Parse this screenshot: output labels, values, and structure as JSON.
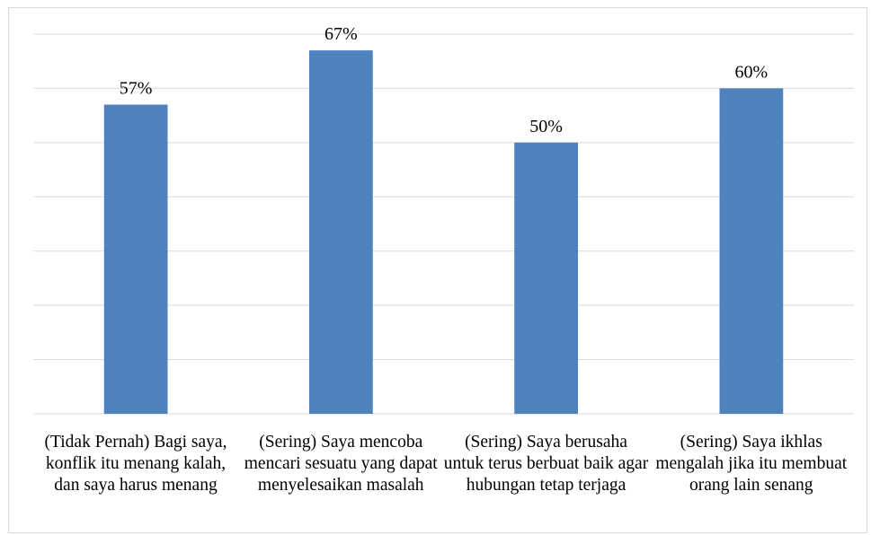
{
  "chart_data": {
    "type": "bar",
    "categories": [
      "(Tidak Pernah) Bagi saya, konflik itu menang kalah, dan saya harus menang",
      "(Sering) Saya mencoba mencari sesuatu yang dapat menyelesaikan masalah",
      "(Sering) Saya berusaha untuk terus berbuat baik agar hubungan tetap terjaga",
      "(Sering) Saya ikhlas mengalah jika itu membuat orang lain senang"
    ],
    "values": [
      57,
      67,
      50,
      60
    ],
    "value_labels": [
      "57%",
      "67%",
      "50%",
      "60%"
    ],
    "color": "#4f81bd",
    "ylim": [
      0,
      70
    ],
    "yticks": [
      0,
      10,
      20,
      30,
      40,
      50,
      60,
      70
    ],
    "grid": true
  }
}
